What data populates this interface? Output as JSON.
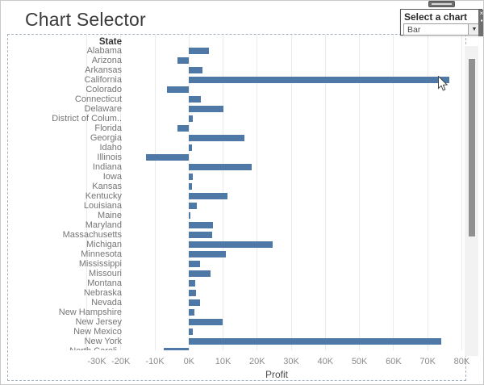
{
  "title": "Chart Selector",
  "selector": {
    "label": "Select a chart",
    "value": "Bar",
    "arrow_icon": "▼"
  },
  "edge_toolbar": {
    "close_icon": "×",
    "pin_icon": "▪"
  },
  "colors": {
    "bar": "#4e79a7",
    "gridline": "#ebebeb",
    "selection_dash": "#a4b0bd",
    "scrollbar_thumb": "#909090"
  },
  "chart_data": {
    "type": "bar",
    "orientation": "horizontal",
    "column_header": "State",
    "xlabel": "Profit",
    "xlim": [
      -30000,
      81000
    ],
    "grid": true,
    "x_tick_values": [
      -30000,
      -20000,
      -10000,
      0,
      10000,
      20000,
      30000,
      40000,
      50000,
      60000,
      70000,
      80000
    ],
    "x_tick_labels": [
      "-30K",
      "-20K",
      "-10K",
      "0K",
      "10K",
      "20K",
      "30K",
      "40K",
      "50K",
      "60K",
      "70K",
      "80K"
    ],
    "categories": [
      "Alabama",
      "Arizona",
      "Arkansas",
      "California",
      "Colorado",
      "Connecticut",
      "Delaware",
      "District of Colum..",
      "Florida",
      "Georgia",
      "Idaho",
      "Illinois",
      "Indiana",
      "Iowa",
      "Kansas",
      "Kentucky",
      "Louisiana",
      "Maine",
      "Maryland",
      "Massachusetts",
      "Michigan",
      "Minnesota",
      "Mississippi",
      "Missouri",
      "Montana",
      "Nebraska",
      "Nevada",
      "New Hampshire",
      "New Jersey",
      "New Mexico",
      "New York",
      "North Caroli.."
    ],
    "values": [
      5800,
      -3400,
      4000,
      76400,
      -6500,
      3500,
      10000,
      1100,
      -3400,
      16300,
      800,
      -12600,
      18400,
      1200,
      800,
      11200,
      2200,
      500,
      7000,
      6800,
      24500,
      10800,
      3200,
      6400,
      1800,
      2000,
      3300,
      1700,
      9800,
      1200,
      74000,
      -7500
    ],
    "last_row_clipped": true
  }
}
